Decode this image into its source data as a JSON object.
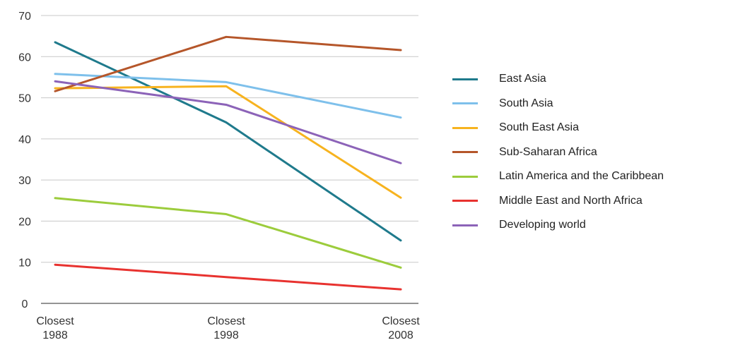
{
  "chart_data": {
    "type": "line",
    "categories": [
      [
        "Closest",
        "1988"
      ],
      [
        "Closest",
        "1998"
      ],
      [
        "Closest",
        "2008"
      ]
    ],
    "ylim": [
      0,
      70
    ],
    "yticks": [
      0,
      10,
      20,
      30,
      40,
      50,
      60,
      70
    ],
    "grid": true,
    "legend_position": "right",
    "series": [
      {
        "name": "East Asia",
        "color": "#1f7a8c",
        "values": [
          63.5,
          44,
          15.3
        ]
      },
      {
        "name": "South Asia",
        "color": "#7ec0eb",
        "values": [
          55.8,
          53.8,
          45.2
        ]
      },
      {
        "name": "South East Asia",
        "color": "#f7b31f",
        "values": [
          52.3,
          52.8,
          25.7
        ]
      },
      {
        "name": "Sub-Saharan Africa",
        "color": "#b5562a",
        "values": [
          51.6,
          64.8,
          61.6
        ]
      },
      {
        "name": "Latin America and the Caribbean",
        "color": "#9ccc3c",
        "values": [
          25.6,
          21.7,
          8.7
        ]
      },
      {
        "name": "Middle East and North Africa",
        "color": "#e8322f",
        "values": [
          9.4,
          6.4,
          3.4
        ]
      },
      {
        "name": "Developing world",
        "color": "#8c63b8",
        "values": [
          54,
          48.3,
          34.1
        ]
      }
    ]
  }
}
